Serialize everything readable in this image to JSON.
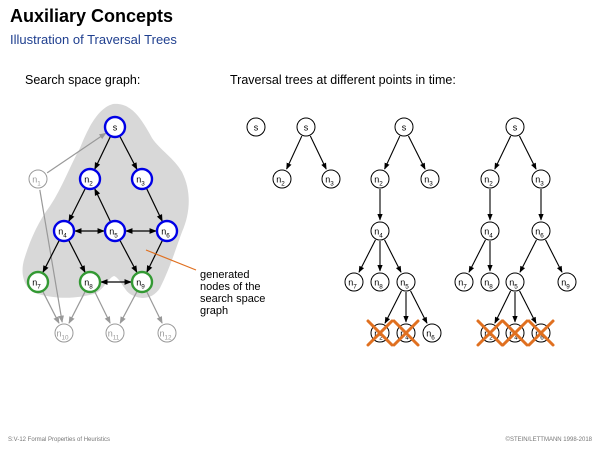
{
  "title": "Auxiliary Concepts",
  "subtitle": "Illustration of Traversal Trees",
  "left_heading": "Search space graph:",
  "right_heading": "Traversal trees at different points in time:",
  "annotation": [
    "generated",
    "nodes of the",
    "search space",
    "graph"
  ],
  "footer_left": "S:V-12   Formal Properties of Heuristics",
  "footer_right": "©STEIN/LETTMANN 1998-2018",
  "colors": {
    "expanded": "#0000e6",
    "generated_leaf": "#339933",
    "unexplored": "#999999",
    "pointer_line": "#e07020",
    "cross": "#e07020",
    "blob": "#d8d8d8",
    "subtitle": "#1f3f8f"
  },
  "graph": {
    "nodes": [
      {
        "id": "s",
        "label": "s",
        "sub": "",
        "state": "expanded"
      },
      {
        "id": "n1",
        "label": "n",
        "sub": "1",
        "state": "unexplored"
      },
      {
        "id": "n2",
        "label": "n",
        "sub": "2",
        "state": "expanded"
      },
      {
        "id": "n3",
        "label": "n",
        "sub": "3",
        "state": "expanded"
      },
      {
        "id": "n4",
        "label": "n",
        "sub": "4",
        "state": "expanded"
      },
      {
        "id": "n5",
        "label": "n",
        "sub": "5",
        "state": "expanded"
      },
      {
        "id": "n6",
        "label": "n",
        "sub": "6",
        "state": "expanded"
      },
      {
        "id": "n7",
        "label": "n",
        "sub": "7",
        "state": "generated"
      },
      {
        "id": "n8",
        "label": "n",
        "sub": "8",
        "state": "generated"
      },
      {
        "id": "n9",
        "label": "n",
        "sub": "9",
        "state": "generated"
      },
      {
        "id": "n10",
        "label": "n",
        "sub": "10",
        "state": "unexplored"
      },
      {
        "id": "n11",
        "label": "n",
        "sub": "11",
        "state": "unexplored"
      },
      {
        "id": "n12",
        "label": "n",
        "sub": "12",
        "state": "unexplored"
      }
    ],
    "edges": [
      {
        "from": "s",
        "to": "n2",
        "type": "expanded"
      },
      {
        "from": "s",
        "to": "n3",
        "type": "expanded"
      },
      {
        "from": "n1",
        "to": "s",
        "type": "unexplored"
      },
      {
        "from": "n1",
        "to": "n10",
        "type": "unexplored"
      },
      {
        "from": "n2",
        "to": "n4",
        "type": "expanded"
      },
      {
        "from": "n3",
        "to": "n6",
        "type": "expanded"
      },
      {
        "from": "n5",
        "to": "n2",
        "type": "expanded"
      },
      {
        "from": "n4",
        "to": "n5",
        "type": "bidirectional"
      },
      {
        "from": "n5",
        "to": "n6",
        "type": "bidirectional"
      },
      {
        "from": "n4",
        "to": "n7",
        "type": "expanded"
      },
      {
        "from": "n4",
        "to": "n8",
        "type": "expanded"
      },
      {
        "from": "n5",
        "to": "n9",
        "type": "expanded"
      },
      {
        "from": "n6",
        "to": "n9",
        "type": "expanded"
      },
      {
        "from": "n8",
        "to": "n9",
        "type": "bidirectional"
      },
      {
        "from": "n7",
        "to": "n10",
        "type": "unexplored"
      },
      {
        "from": "n8",
        "to": "n10",
        "type": "unexplored"
      },
      {
        "from": "n8",
        "to": "n11",
        "type": "unexplored"
      },
      {
        "from": "n9",
        "to": "n11",
        "type": "unexplored"
      },
      {
        "from": "n9",
        "to": "n12",
        "type": "unexplored"
      }
    ]
  },
  "trees": [
    {
      "nodes": [
        {
          "id": "s",
          "label": "s",
          "sub": ""
        }
      ],
      "edges": [],
      "crossed": []
    },
    {
      "nodes": [
        {
          "id": "s",
          "label": "s",
          "sub": ""
        },
        {
          "id": "n2",
          "label": "n",
          "sub": "2"
        },
        {
          "id": "n3",
          "label": "n",
          "sub": "3"
        }
      ],
      "edges": [
        [
          "s",
          "n2"
        ],
        [
          "s",
          "n3"
        ]
      ],
      "crossed": []
    },
    {
      "nodes": [
        {
          "id": "s",
          "label": "s",
          "sub": ""
        },
        {
          "id": "n2",
          "label": "n",
          "sub": "2"
        },
        {
          "id": "n3",
          "label": "n",
          "sub": "3"
        },
        {
          "id": "n4",
          "label": "n",
          "sub": "4"
        },
        {
          "id": "n7",
          "label": "n",
          "sub": "7"
        },
        {
          "id": "n8",
          "label": "n",
          "sub": "8"
        },
        {
          "id": "n5",
          "label": "n",
          "sub": "5"
        },
        {
          "id": "n2b",
          "label": "n",
          "sub": "2"
        },
        {
          "id": "n4b",
          "label": "n",
          "sub": "4"
        },
        {
          "id": "n6",
          "label": "n",
          "sub": "6"
        }
      ],
      "edges": [
        [
          "s",
          "n2"
        ],
        [
          "s",
          "n3"
        ],
        [
          "n2",
          "n4"
        ],
        [
          "n4",
          "n7"
        ],
        [
          "n4",
          "n8"
        ],
        [
          "n4",
          "n5"
        ],
        [
          "n5",
          "n2b"
        ],
        [
          "n5",
          "n4b"
        ],
        [
          "n5",
          "n6"
        ]
      ],
      "crossed": [
        "n2b",
        "n4b"
      ]
    },
    {
      "nodes": [
        {
          "id": "s",
          "label": "s",
          "sub": ""
        },
        {
          "id": "n2",
          "label": "n",
          "sub": "2"
        },
        {
          "id": "n3",
          "label": "n",
          "sub": "3"
        },
        {
          "id": "n4",
          "label": "n",
          "sub": "4"
        },
        {
          "id": "n6",
          "label": "n",
          "sub": "6"
        },
        {
          "id": "n7",
          "label": "n",
          "sub": "7"
        },
        {
          "id": "n8",
          "label": "n",
          "sub": "8"
        },
        {
          "id": "n5",
          "label": "n",
          "sub": "5"
        },
        {
          "id": "n9",
          "label": "n",
          "sub": "9"
        },
        {
          "id": "n2b",
          "label": "n",
          "sub": "2"
        },
        {
          "id": "n4b",
          "label": "n",
          "sub": "4"
        },
        {
          "id": "n6b",
          "label": "n",
          "sub": "6"
        }
      ],
      "edges": [
        [
          "s",
          "n2"
        ],
        [
          "s",
          "n3"
        ],
        [
          "n2",
          "n4"
        ],
        [
          "n3",
          "n6"
        ],
        [
          "n4",
          "n7"
        ],
        [
          "n4",
          "n8"
        ],
        [
          "n6",
          "n5"
        ],
        [
          "n6",
          "n9"
        ],
        [
          "n5",
          "n2b"
        ],
        [
          "n5",
          "n4b"
        ],
        [
          "n5",
          "n6b"
        ]
      ],
      "crossed": [
        "n2b",
        "n4b",
        "n6b"
      ]
    }
  ]
}
